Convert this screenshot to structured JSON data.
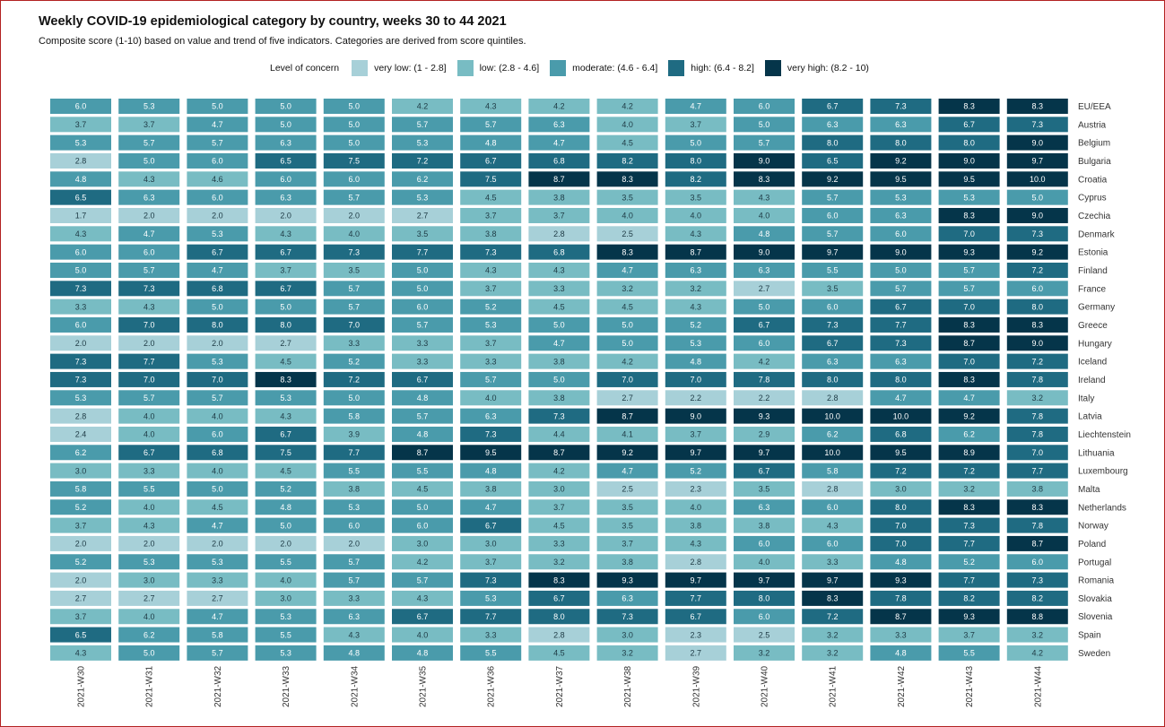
{
  "chart_data": {
    "type": "heatmap",
    "title": "Weekly COVID-19 epidemiological category by country, weeks 30 to 44 2021",
    "subtitle": "Composite score (1-10) based on value and trend of five indicators. Categories are derived from score quintiles.",
    "legend": {
      "title": "Level of concern",
      "placement": "top",
      "items": [
        {
          "label": "very low: (1 - 2.8]",
          "color": "#a7d0d8",
          "min": 1,
          "max": 2.8
        },
        {
          "label": "low: (2.8 - 4.6]",
          "color": "#78bcc3",
          "min": 2.8,
          "max": 4.6
        },
        {
          "label": "moderate: (4.6 - 6.4]",
          "color": "#4a9bab",
          "min": 4.6,
          "max": 6.4
        },
        {
          "label": "high: (6.4 - 8.2]",
          "color": "#1f6b82",
          "min": 6.4,
          "max": 8.2
        },
        {
          "label": "very high: (8.2 - 10)",
          "color": "#05354a",
          "min": 8.2,
          "max": 10
        }
      ]
    },
    "x": [
      "2021-W30",
      "2021-W31",
      "2021-W32",
      "2021-W33",
      "2021-W34",
      "2021-W35",
      "2021-W36",
      "2021-W37",
      "2021-W38",
      "2021-W39",
      "2021-W40",
      "2021-W41",
      "2021-W42",
      "2021-W43",
      "2021-W44"
    ],
    "y": [
      "EU/EEA",
      "Austria",
      "Belgium",
      "Bulgaria",
      "Croatia",
      "Cyprus",
      "Czechia",
      "Denmark",
      "Estonia",
      "Finland",
      "France",
      "Germany",
      "Greece",
      "Hungary",
      "Iceland",
      "Ireland",
      "Italy",
      "Latvia",
      "Liechtenstein",
      "Lithuania",
      "Luxembourg",
      "Malta",
      "Netherlands",
      "Norway",
      "Poland",
      "Portugal",
      "Romania",
      "Slovakia",
      "Slovenia",
      "Spain",
      "Sweden"
    ],
    "values": [
      [
        "6.0",
        "5.3",
        "5.0",
        "5.0",
        "5.0",
        "4.2",
        "4.3",
        "4.2",
        "4.2",
        "4.7",
        "6.0",
        "6.7",
        "7.3",
        "8.3",
        "8.3"
      ],
      [
        "3.7",
        "3.7",
        "4.7",
        "5.0",
        "5.0",
        "5.7",
        "5.7",
        "6.3",
        "4.0",
        "3.7",
        "5.0",
        "6.3",
        "6.3",
        "6.7",
        "7.3"
      ],
      [
        "5.3",
        "5.7",
        "5.7",
        "6.3",
        "5.0",
        "5.3",
        "4.8",
        "4.7",
        "4.5",
        "5.0",
        "5.7",
        "8.0",
        "8.0",
        "8.0",
        "9.0"
      ],
      [
        "2.8",
        "5.0",
        "6.0",
        "6.5",
        "7.5",
        "7.2",
        "6.7",
        "6.8",
        "8.2",
        "8.0",
        "9.0",
        "6.5",
        "9.2",
        "9.0",
        "9.7"
      ],
      [
        "4.8",
        "4.3",
        "4.6",
        "6.0",
        "6.0",
        "6.2",
        "7.5",
        "8.7",
        "8.3",
        "8.2",
        "8.3",
        "9.2",
        "9.5",
        "9.5",
        "10.0"
      ],
      [
        "6.5",
        "6.3",
        "6.0",
        "6.3",
        "5.7",
        "5.3",
        "4.5",
        "3.8",
        "3.5",
        "3.5",
        "4.3",
        "5.7",
        "5.3",
        "5.3",
        "5.0"
      ],
      [
        "1.7",
        "2.0",
        "2.0",
        "2.0",
        "2.0",
        "2.7",
        "3.7",
        "3.7",
        "4.0",
        "4.0",
        "4.0",
        "6.0",
        "6.3",
        "8.3",
        "9.0"
      ],
      [
        "4.3",
        "4.7",
        "5.3",
        "4.3",
        "4.0",
        "3.5",
        "3.8",
        "2.8",
        "2.5",
        "4.3",
        "4.8",
        "5.7",
        "6.0",
        "7.0",
        "7.3"
      ],
      [
        "6.0",
        "6.0",
        "6.7",
        "6.7",
        "7.3",
        "7.7",
        "7.3",
        "6.8",
        "8.3",
        "8.7",
        "9.0",
        "9.7",
        "9.0",
        "9.3",
        "9.2"
      ],
      [
        "5.0",
        "5.7",
        "4.7",
        "3.7",
        "3.5",
        "5.0",
        "4.3",
        "4.3",
        "4.7",
        "6.3",
        "6.3",
        "5.5",
        "5.0",
        "5.7",
        "7.2"
      ],
      [
        "7.3",
        "7.3",
        "6.8",
        "6.7",
        "5.7",
        "5.0",
        "3.7",
        "3.3",
        "3.2",
        "3.2",
        "2.7",
        "3.5",
        "5.7",
        "5.7",
        "6.0"
      ],
      [
        "3.3",
        "4.3",
        "5.0",
        "5.0",
        "5.7",
        "6.0",
        "5.2",
        "4.5",
        "4.5",
        "4.3",
        "5.0",
        "6.0",
        "6.7",
        "7.0",
        "8.0"
      ],
      [
        "6.0",
        "7.0",
        "8.0",
        "8.0",
        "7.0",
        "5.7",
        "5.3",
        "5.0",
        "5.0",
        "5.2",
        "6.7",
        "7.3",
        "7.7",
        "8.3",
        "8.3"
      ],
      [
        "2.0",
        "2.0",
        "2.0",
        "2.7",
        "3.3",
        "3.3",
        "3.7",
        "4.7",
        "5.0",
        "5.3",
        "6.0",
        "6.7",
        "7.3",
        "8.7",
        "9.0"
      ],
      [
        "7.3",
        "7.7",
        "5.3",
        "4.5",
        "5.2",
        "3.3",
        "3.3",
        "3.8",
        "4.2",
        "4.8",
        "4.2",
        "6.3",
        "6.3",
        "7.0",
        "7.2"
      ],
      [
        "7.3",
        "7.0",
        "7.0",
        "8.3",
        "7.2",
        "6.7",
        "5.7",
        "5.0",
        "7.0",
        "7.0",
        "7.8",
        "8.0",
        "8.0",
        "8.3",
        "7.8"
      ],
      [
        "5.3",
        "5.7",
        "5.7",
        "5.3",
        "5.0",
        "4.8",
        "4.0",
        "3.8",
        "2.7",
        "2.2",
        "2.2",
        "2.8",
        "4.7",
        "4.7",
        "3.2"
      ],
      [
        "2.8",
        "4.0",
        "4.0",
        "4.3",
        "5.8",
        "5.7",
        "6.3",
        "7.3",
        "8.7",
        "9.0",
        "9.3",
        "10.0",
        "10.0",
        "9.2",
        "7.8"
      ],
      [
        "2.4",
        "4.0",
        "6.0",
        "6.7",
        "3.9",
        "4.8",
        "7.3",
        "4.4",
        "4.1",
        "3.7",
        "2.9",
        "6.2",
        "6.8",
        "6.2",
        "7.8"
      ],
      [
        "6.2",
        "6.7",
        "6.8",
        "7.5",
        "7.7",
        "8.7",
        "9.5",
        "8.7",
        "9.2",
        "9.7",
        "9.7",
        "10.0",
        "9.5",
        "8.9",
        "7.0"
      ],
      [
        "3.0",
        "3.3",
        "4.0",
        "4.5",
        "5.5",
        "5.5",
        "4.8",
        "4.2",
        "4.7",
        "5.2",
        "6.7",
        "5.8",
        "7.2",
        "7.2",
        "7.7"
      ],
      [
        "5.8",
        "5.5",
        "5.0",
        "5.2",
        "3.8",
        "4.5",
        "3.8",
        "3.0",
        "2.5",
        "2.3",
        "3.5",
        "2.8",
        "3.0",
        "3.2",
        "3.8"
      ],
      [
        "5.2",
        "4.0",
        "4.5",
        "4.8",
        "5.3",
        "5.0",
        "4.7",
        "3.7",
        "3.5",
        "4.0",
        "6.3",
        "6.0",
        "8.0",
        "8.3",
        "8.3"
      ],
      [
        "3.7",
        "4.3",
        "4.7",
        "5.0",
        "6.0",
        "6.0",
        "6.7",
        "4.5",
        "3.5",
        "3.8",
        "3.8",
        "4.3",
        "7.0",
        "7.3",
        "7.8"
      ],
      [
        "2.0",
        "2.0",
        "2.0",
        "2.0",
        "2.0",
        "3.0",
        "3.0",
        "3.3",
        "3.7",
        "4.3",
        "6.0",
        "6.0",
        "7.0",
        "7.7",
        "8.7"
      ],
      [
        "5.2",
        "5.3",
        "5.3",
        "5.5",
        "5.7",
        "4.2",
        "3.7",
        "3.2",
        "3.8",
        "2.8",
        "4.0",
        "3.3",
        "4.8",
        "5.2",
        "6.0"
      ],
      [
        "2.0",
        "3.0",
        "3.3",
        "4.0",
        "5.7",
        "5.7",
        "7.3",
        "8.3",
        "9.3",
        "9.7",
        "9.7",
        "9.7",
        "9.3",
        "7.7",
        "7.3"
      ],
      [
        "2.7",
        "2.7",
        "2.7",
        "3.0",
        "3.3",
        "4.3",
        "5.3",
        "6.7",
        "6.3",
        "7.7",
        "8.0",
        "8.3",
        "7.8",
        "8.2",
        "8.2"
      ],
      [
        "3.7",
        "4.0",
        "4.7",
        "5.3",
        "6.3",
        "6.7",
        "7.7",
        "8.0",
        "7.3",
        "6.7",
        "6.0",
        "7.2",
        "8.7",
        "9.3",
        "8.8"
      ],
      [
        "6.5",
        "6.2",
        "5.8",
        "5.5",
        "4.3",
        "4.0",
        "3.3",
        "2.8",
        "3.0",
        "2.3",
        "2.5",
        "3.2",
        "3.3",
        "3.7",
        "3.2"
      ],
      [
        "4.3",
        "5.0",
        "5.7",
        "5.3",
        "4.8",
        "4.8",
        "5.5",
        "4.5",
        "3.2",
        "2.7",
        "3.2",
        "3.2",
        "4.8",
        "5.5",
        "4.2"
      ]
    ],
    "grid": false
  }
}
